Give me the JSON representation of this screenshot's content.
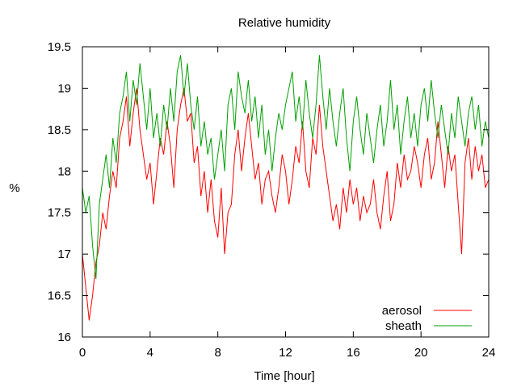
{
  "chart_data": {
    "type": "line",
    "title": "Relative humidity",
    "xlabel": "Time [hour]",
    "ylabel": "%",
    "xlim": [
      0,
      24
    ],
    "ylim": [
      16,
      19.5
    ],
    "xticks": [
      0,
      4,
      8,
      12,
      16,
      20,
      24
    ],
    "yticks": [
      16,
      16.5,
      17,
      17.5,
      18,
      18.5,
      19,
      19.5
    ],
    "ytick_labels": [
      "16",
      "16.5",
      "17",
      "17.5",
      "18",
      "18.5",
      "19",
      "19.5"
    ],
    "grid": false,
    "legend_position": "bottom-right",
    "series": [
      {
        "name": "aerosol",
        "color": "#ff0000",
        "x": [
          0,
          0.2,
          0.4,
          0.6,
          0.8,
          1.0,
          1.2,
          1.4,
          1.6,
          1.8,
          2.0,
          2.2,
          2.4,
          2.6,
          2.8,
          3.0,
          3.2,
          3.4,
          3.6,
          3.8,
          4.0,
          4.2,
          4.4,
          4.6,
          4.8,
          5.0,
          5.2,
          5.4,
          5.6,
          5.8,
          6.0,
          6.2,
          6.4,
          6.6,
          6.8,
          7.0,
          7.2,
          7.4,
          7.6,
          7.8,
          8.0,
          8.2,
          8.4,
          8.6,
          8.8,
          9.0,
          9.2,
          9.4,
          9.6,
          9.8,
          10.0,
          10.2,
          10.4,
          10.6,
          10.8,
          11.0,
          11.2,
          11.4,
          11.6,
          11.8,
          12.0,
          12.2,
          12.4,
          12.6,
          12.8,
          13.0,
          13.2,
          13.4,
          13.6,
          13.8,
          14.0,
          14.2,
          14.4,
          14.6,
          14.8,
          15.0,
          15.2,
          15.4,
          15.6,
          15.8,
          16.0,
          16.2,
          16.4,
          16.6,
          16.8,
          17.0,
          17.2,
          17.4,
          17.6,
          17.8,
          18.0,
          18.2,
          18.4,
          18.6,
          18.8,
          19.0,
          19.2,
          19.4,
          19.6,
          19.8,
          20.0,
          20.2,
          20.4,
          20.6,
          20.8,
          21.0,
          21.2,
          21.4,
          21.6,
          21.8,
          22.0,
          22.2,
          22.4,
          22.6,
          22.8,
          23.0,
          23.2,
          23.4,
          23.6,
          23.8,
          24.0
        ],
        "y": [
          17.0,
          16.6,
          16.2,
          16.5,
          16.9,
          17.1,
          17.5,
          17.3,
          17.7,
          18.0,
          17.8,
          18.4,
          18.6,
          18.9,
          18.3,
          18.7,
          19.0,
          18.5,
          18.2,
          17.9,
          18.1,
          17.6,
          18.0,
          18.4,
          18.2,
          18.6,
          18.3,
          17.8,
          18.5,
          18.8,
          19.0,
          18.6,
          18.7,
          18.1,
          18.3,
          17.7,
          18.0,
          17.5,
          17.9,
          17.4,
          17.2,
          17.8,
          17.0,
          17.5,
          17.6,
          18.2,
          18.5,
          18.0,
          18.4,
          18.7,
          18.3,
          17.9,
          18.1,
          17.6,
          17.9,
          18.0,
          17.7,
          17.5,
          17.8,
          18.2,
          18.0,
          17.6,
          17.9,
          18.3,
          18.1,
          18.6,
          18.0,
          17.8,
          18.4,
          18.2,
          18.8,
          18.3,
          18.0,
          17.7,
          17.4,
          17.6,
          17.3,
          17.8,
          17.5,
          17.9,
          17.6,
          17.8,
          17.4,
          17.7,
          17.5,
          17.6,
          17.9,
          17.5,
          17.3,
          17.7,
          18.0,
          17.4,
          17.6,
          18.1,
          17.8,
          18.2,
          17.9,
          18.0,
          18.3,
          18.1,
          17.8,
          18.2,
          18.4,
          17.9,
          18.1,
          18.6,
          18.2,
          17.8,
          18.3,
          18.0,
          18.2,
          17.6,
          17.0,
          18.1,
          18.4,
          17.9,
          18.3,
          18.0,
          18.2,
          17.8,
          17.9
        ]
      },
      {
        "name": "sheath",
        "color": "#00a000",
        "x": [
          0,
          0.2,
          0.4,
          0.6,
          0.8,
          1.0,
          1.2,
          1.4,
          1.6,
          1.8,
          2.0,
          2.2,
          2.4,
          2.6,
          2.8,
          3.0,
          3.2,
          3.4,
          3.6,
          3.8,
          4.0,
          4.2,
          4.4,
          4.6,
          4.8,
          5.0,
          5.2,
          5.4,
          5.6,
          5.8,
          6.0,
          6.2,
          6.4,
          6.6,
          6.8,
          7.0,
          7.2,
          7.4,
          7.6,
          7.8,
          8.0,
          8.2,
          8.4,
          8.6,
          8.8,
          9.0,
          9.2,
          9.4,
          9.6,
          9.8,
          10.0,
          10.2,
          10.4,
          10.6,
          10.8,
          11.0,
          11.2,
          11.4,
          11.6,
          11.8,
          12.0,
          12.2,
          12.4,
          12.6,
          12.8,
          13.0,
          13.2,
          13.4,
          13.6,
          13.8,
          14.0,
          14.2,
          14.4,
          14.6,
          14.8,
          15.0,
          15.2,
          15.4,
          15.6,
          15.8,
          16.0,
          16.2,
          16.4,
          16.6,
          16.8,
          17.0,
          17.2,
          17.4,
          17.6,
          17.8,
          18.0,
          18.2,
          18.4,
          18.6,
          18.8,
          19.0,
          19.2,
          19.4,
          19.6,
          19.8,
          20.0,
          20.2,
          20.4,
          20.6,
          20.8,
          21.0,
          21.2,
          21.4,
          21.6,
          21.8,
          22.0,
          22.2,
          22.4,
          22.6,
          22.8,
          23.0,
          23.2,
          23.4,
          23.6,
          23.8,
          24.0
        ],
        "y": [
          17.8,
          17.5,
          17.7,
          17.1,
          16.7,
          17.6,
          17.9,
          18.2,
          17.8,
          18.4,
          18.1,
          18.7,
          18.9,
          19.2,
          18.6,
          19.1,
          18.8,
          19.3,
          18.9,
          18.5,
          19.0,
          18.4,
          18.7,
          18.3,
          18.8,
          18.5,
          19.0,
          18.6,
          19.2,
          19.4,
          18.9,
          19.3,
          18.8,
          18.5,
          18.9,
          18.3,
          18.6,
          18.2,
          18.4,
          17.9,
          18.2,
          18.5,
          18.0,
          18.8,
          19.0,
          18.5,
          19.2,
          18.9,
          18.7,
          19.1,
          18.6,
          18.9,
          18.4,
          18.8,
          18.2,
          18.5,
          18.0,
          18.4,
          18.7,
          18.5,
          18.8,
          19.0,
          19.2,
          18.6,
          18.9,
          18.5,
          19.1,
          18.7,
          18.4,
          18.8,
          19.4,
          18.9,
          18.5,
          19.0,
          18.6,
          18.3,
          18.7,
          19.0,
          18.4,
          18.0,
          18.6,
          18.9,
          18.5,
          18.2,
          18.7,
          18.4,
          18.1,
          18.5,
          18.8,
          18.3,
          18.6,
          19.1,
          18.5,
          18.8,
          18.2,
          18.6,
          18.9,
          18.4,
          18.7,
          18.3,
          18.8,
          19.0,
          18.6,
          19.1,
          18.7,
          18.4,
          18.8,
          18.5,
          18.2,
          18.7,
          18.4,
          18.9,
          18.6,
          18.3,
          18.7,
          18.9,
          18.5,
          18.8,
          18.3,
          18.6,
          18.4
        ]
      }
    ]
  }
}
